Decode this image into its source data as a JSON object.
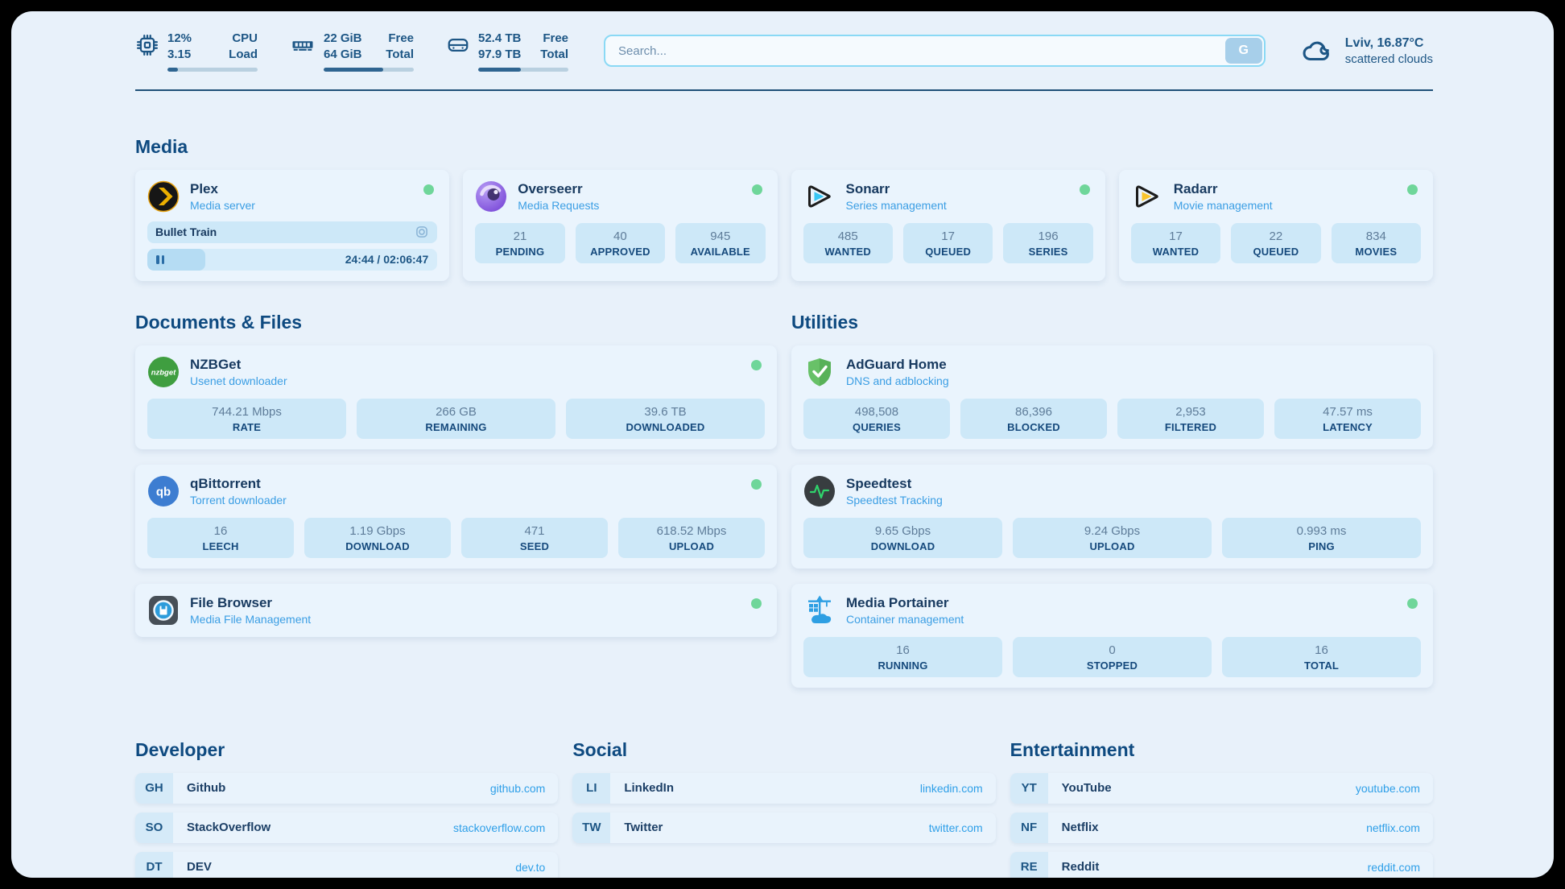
{
  "topbar": {
    "cpu": {
      "value": "12%",
      "load": "3.15",
      "label_top": "CPU",
      "label_bottom": "Load",
      "progress": 12
    },
    "memory": {
      "free": "22 GiB",
      "total": "64 GiB",
      "label_top": "Free",
      "label_bottom": "Total",
      "progress": 66
    },
    "disk": {
      "free": "52.4 TB",
      "total": "97.9 TB",
      "label_top": "Free",
      "label_bottom": "Total",
      "progress": 47
    },
    "search": {
      "placeholder": "Search...",
      "button": "G"
    },
    "weather": {
      "location": "Lviv, 16.87°C",
      "condition": "scattered clouds"
    }
  },
  "sections": {
    "media": {
      "title": "Media",
      "plex": {
        "title": "Plex",
        "subtitle": "Media server",
        "now_playing": "Bullet Train",
        "time": "24:44 / 02:06:47",
        "progress": 20
      },
      "overseerr": {
        "title": "Overseerr",
        "subtitle": "Media Requests",
        "stats": [
          {
            "value": "21",
            "label": "PENDING"
          },
          {
            "value": "40",
            "label": "APPROVED"
          },
          {
            "value": "945",
            "label": "AVAILABLE"
          }
        ]
      },
      "sonarr": {
        "title": "Sonarr",
        "subtitle": "Series management",
        "stats": [
          {
            "value": "485",
            "label": "WANTED"
          },
          {
            "value": "17",
            "label": "QUEUED"
          },
          {
            "value": "196",
            "label": "SERIES"
          }
        ]
      },
      "radarr": {
        "title": "Radarr",
        "subtitle": "Movie management",
        "stats": [
          {
            "value": "17",
            "label": "WANTED"
          },
          {
            "value": "22",
            "label": "QUEUED"
          },
          {
            "value": "834",
            "label": "MOVIES"
          }
        ]
      }
    },
    "documents": {
      "title": "Documents & Files",
      "nzbget": {
        "title": "NZBGet",
        "subtitle": "Usenet downloader",
        "stats": [
          {
            "value": "744.21 Mbps",
            "label": "RATE"
          },
          {
            "value": "266 GB",
            "label": "REMAINING"
          },
          {
            "value": "39.6 TB",
            "label": "DOWNLOADED"
          }
        ]
      },
      "qbittorrent": {
        "title": "qBittorrent",
        "subtitle": "Torrent downloader",
        "stats": [
          {
            "value": "16",
            "label": "LEECH"
          },
          {
            "value": "1.19 Gbps",
            "label": "DOWNLOAD"
          },
          {
            "value": "471",
            "label": "SEED"
          },
          {
            "value": "618.52 Mbps",
            "label": "UPLOAD"
          }
        ]
      },
      "filebrowser": {
        "title": "File Browser",
        "subtitle": "Media File Management"
      }
    },
    "utilities": {
      "title": "Utilities",
      "adguard": {
        "title": "AdGuard Home",
        "subtitle": "DNS and adblocking",
        "stats": [
          {
            "value": "498,508",
            "label": "QUERIES"
          },
          {
            "value": "86,396",
            "label": "BLOCKED"
          },
          {
            "value": "2,953",
            "label": "FILTERED"
          },
          {
            "value": "47.57 ms",
            "label": "LATENCY"
          }
        ]
      },
      "speedtest": {
        "title": "Speedtest",
        "subtitle": "Speedtest Tracking",
        "stats": [
          {
            "value": "9.65 Gbps",
            "label": "DOWNLOAD"
          },
          {
            "value": "9.24 Gbps",
            "label": "UPLOAD"
          },
          {
            "value": "0.993 ms",
            "label": "PING"
          }
        ]
      },
      "portainer": {
        "title": "Media Portainer",
        "subtitle": "Container management",
        "stats": [
          {
            "value": "16",
            "label": "RUNNING"
          },
          {
            "value": "0",
            "label": "STOPPED"
          },
          {
            "value": "16",
            "label": "TOTAL"
          }
        ]
      }
    },
    "bookmarks": {
      "developer": {
        "title": "Developer",
        "items": [
          {
            "abbr": "GH",
            "name": "Github",
            "url": "github.com"
          },
          {
            "abbr": "SO",
            "name": "StackOverflow",
            "url": "stackoverflow.com"
          },
          {
            "abbr": "DT",
            "name": "DEV",
            "url": "dev.to"
          }
        ]
      },
      "social": {
        "title": "Social",
        "items": [
          {
            "abbr": "LI",
            "name": "LinkedIn",
            "url": "linkedin.com"
          },
          {
            "abbr": "TW",
            "name": "Twitter",
            "url": "twitter.com"
          }
        ]
      },
      "entertainment": {
        "title": "Entertainment",
        "items": [
          {
            "abbr": "YT",
            "name": "YouTube",
            "url": "youtube.com"
          },
          {
            "abbr": "NF",
            "name": "Netflix",
            "url": "netflix.com"
          },
          {
            "abbr": "RE",
            "name": "Reddit",
            "url": "reddit.com"
          }
        ]
      }
    }
  },
  "colors": {
    "accent_blue": "#3b9ee4",
    "status_online": "#6fd69a",
    "navy_text": "#1d5685"
  }
}
